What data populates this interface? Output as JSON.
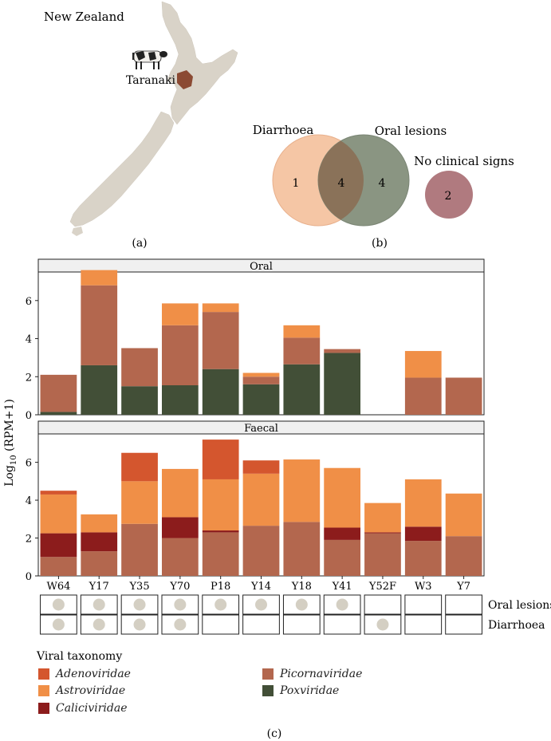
{
  "panel_a": {
    "country_label": "New Zealand",
    "region_label": "Taranaki",
    "panel_label": "(a)",
    "cow_icon": "cow-icon"
  },
  "panel_b": {
    "panel_label": "(b)",
    "venn": {
      "set1_label": "Diarrhoea",
      "set2_label": "Oral lesions",
      "only1": "1",
      "both": "4",
      "only2": "4",
      "separate_label": "No clinical signs",
      "separate_count": "2",
      "colors": {
        "set1": "#f5c6a5",
        "set2": "#8a9582",
        "overlap": "#8a7259",
        "separate": "#b07a7f"
      }
    }
  },
  "chart_data": {
    "type": "bar",
    "stacked": true,
    "ylabel": "Log10 (RPM+1)",
    "ylim": [
      0,
      7.5
    ],
    "yticks": [
      0,
      2,
      4,
      6
    ],
    "categories": [
      "W64",
      "Y17",
      "Y35",
      "Y70",
      "P18",
      "Y14",
      "Y18",
      "Y41",
      "Y52F",
      "W3",
      "Y7"
    ],
    "colors": {
      "Adenoviridae": "#d4562e",
      "Astroviridae": "#f08f47",
      "Caliciviridae": "#8c1c1c",
      "Picornaviridae": "#b3674e",
      "Poxviridae": "#424f37"
    },
    "facets": [
      {
        "name": "Oral",
        "series": [
          {
            "name": "Poxviridae",
            "values": [
              0.15,
              2.6,
              1.5,
              1.55,
              2.4,
              1.6,
              2.65,
              3.25,
              0,
              0,
              0
            ]
          },
          {
            "name": "Caliciviridae",
            "values": [
              0,
              0,
              0,
              0,
              0,
              0,
              0,
              0,
              0,
              0,
              0
            ]
          },
          {
            "name": "Picornaviridae",
            "values": [
              1.95,
              4.2,
              2.0,
              3.15,
              3.0,
              0.4,
              1.4,
              0.2,
              0,
              1.95,
              1.95
            ]
          },
          {
            "name": "Astroviridae",
            "values": [
              0,
              0.8,
              0,
              1.15,
              0.45,
              0.2,
              0.65,
              0,
              0,
              1.4,
              0
            ]
          },
          {
            "name": "Adenoviridae",
            "values": [
              0,
              0,
              0,
              0,
              0,
              0,
              0,
              0,
              0,
              0,
              0
            ]
          }
        ]
      },
      {
        "name": "Faecal",
        "series": [
          {
            "name": "Poxviridae",
            "values": [
              0,
              0,
              0,
              0,
              0,
              0,
              0,
              0,
              0,
              0,
              0
            ]
          },
          {
            "name": "Picornaviridae",
            "values": [
              1.0,
              1.3,
              2.75,
              2.0,
              2.3,
              2.65,
              2.85,
              1.9,
              2.25,
              1.85,
              2.1
            ]
          },
          {
            "name": "Caliciviridae",
            "values": [
              1.25,
              1.0,
              0,
              1.1,
              0.1,
              0,
              0,
              0.65,
              0.05,
              0.75,
              0
            ]
          },
          {
            "name": "Astroviridae",
            "values": [
              2.05,
              0.95,
              2.25,
              2.55,
              2.7,
              2.75,
              3.3,
              3.15,
              1.55,
              2.5,
              2.25
            ]
          },
          {
            "name": "Adenoviridae",
            "values": [
              0.2,
              0,
              1.5,
              0,
              2.1,
              0.7,
              0,
              0,
              0,
              0,
              0
            ]
          }
        ]
      }
    ],
    "signs": {
      "rows": [
        "Oral lesions",
        "Diarrhoea"
      ],
      "oral_lesions": [
        true,
        true,
        true,
        true,
        true,
        true,
        true,
        true,
        false,
        false,
        false
      ],
      "diarrhoea": [
        true,
        true,
        true,
        true,
        false,
        false,
        false,
        false,
        true,
        false,
        false
      ]
    },
    "legend": {
      "title": "Viral taxonomy",
      "placement": "bottom-left",
      "entries": [
        "Adenoviridae",
        "Astroviridae",
        "Caliciviridae",
        "Picornaviridae",
        "Poxviridae"
      ]
    },
    "panel_label": "(c)"
  }
}
